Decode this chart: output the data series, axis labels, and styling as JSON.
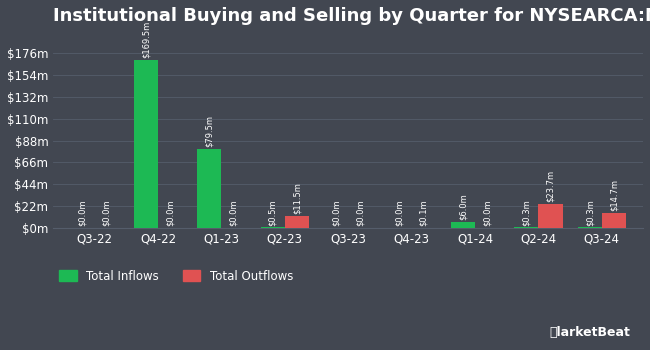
{
  "title": "Institutional Buying and Selling by Quarter for NYSEARCA:NBCM",
  "quarters": [
    "Q3-22",
    "Q4-22",
    "Q1-23",
    "Q2-23",
    "Q3-23",
    "Q4-23",
    "Q1-24",
    "Q2-24",
    "Q3-24"
  ],
  "inflows": [
    0.0,
    169.5,
    79.5,
    0.5,
    0.0,
    0.0,
    6.0,
    0.3,
    0.3
  ],
  "outflows": [
    0.0,
    0.0,
    0.0,
    11.5,
    0.0,
    0.1,
    0.0,
    23.7,
    14.7
  ],
  "inflow_labels": [
    "$0.0m",
    "$169.5m",
    "$79.5m",
    "$0.5m",
    "$0.0m",
    "$0.0m",
    "$6.0m",
    "$0.3m",
    "$0.3m"
  ],
  "outflow_labels": [
    "$0.0m",
    "$0.0m",
    "$0.0m",
    "$11.5m",
    "$0.0m",
    "$0.1m",
    "$0.0m",
    "$23.7m",
    "$14.7m"
  ],
  "inflow_color": "#1db954",
  "outflow_color": "#e05252",
  "background_color": "#424751",
  "plot_bg_color": "#424751",
  "text_color": "#ffffff",
  "grid_color": "#555d6b",
  "yticks": [
    0,
    22,
    44,
    66,
    88,
    110,
    132,
    154,
    176
  ],
  "ytick_labels": [
    "$0m",
    "$22m",
    "$44m",
    "$66m",
    "$88m",
    "$110m",
    "$132m",
    "$154m",
    "$176m"
  ],
  "ylim": [
    0,
    192
  ],
  "bar_width": 0.38,
  "legend_inflow": "Total Inflows",
  "legend_outflow": "Total Outflows",
  "title_fontsize": 13,
  "axis_fontsize": 8.5,
  "label_fontsize": 6.0
}
